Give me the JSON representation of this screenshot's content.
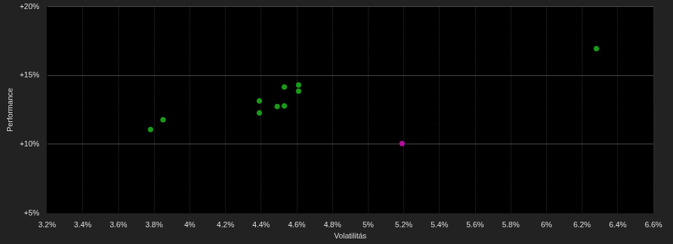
{
  "chart_data": {
    "type": "scatter",
    "x_label": "Volatilitás",
    "y_label": "Performance",
    "x": [
      3.78,
      3.85,
      4.39,
      4.39,
      4.49,
      4.53,
      4.53,
      4.61,
      4.61,
      6.28,
      5.19
    ],
    "values": [
      11.07,
      11.78,
      13.15,
      12.28,
      12.74,
      12.79,
      14.16,
      14.31,
      13.86,
      16.95,
      10.05
    ],
    "colors": [
      "#1a9a1a",
      "#1a9a1a",
      "#1a9a1a",
      "#1a9a1a",
      "#1a9a1a",
      "#1a9a1a",
      "#1a9a1a",
      "#1a9a1a",
      "#1a9a1a",
      "#1a9a1a",
      "#b0109c"
    ],
    "xlim": [
      3.2,
      6.6
    ],
    "xticks": [
      {
        "value": 3.2,
        "label": "3.2%"
      },
      {
        "value": 3.4,
        "label": "3.4%"
      },
      {
        "value": 3.6,
        "label": "3.6%"
      },
      {
        "value": 3.8,
        "label": "3.8%"
      },
      {
        "value": 4,
        "label": "4%"
      },
      {
        "value": 4.2,
        "label": "4.2%"
      },
      {
        "value": 4.4,
        "label": "4.4%"
      },
      {
        "value": 4.6,
        "label": "4.6%"
      },
      {
        "value": 4.8,
        "label": "4.8%"
      },
      {
        "value": 5,
        "label": "5%"
      },
      {
        "value": 5.2,
        "label": "5.2%"
      },
      {
        "value": 5.4,
        "label": "5.4%"
      },
      {
        "value": 5.6,
        "label": "5.6%"
      },
      {
        "value": 5.8,
        "label": "5.8%"
      },
      {
        "value": 6,
        "label": "6%"
      },
      {
        "value": 6.2,
        "label": "6.2%"
      },
      {
        "value": 6.4,
        "label": "6.4%"
      },
      {
        "value": 6.6,
        "label": "6.6%"
      }
    ],
    "ylim": [
      5,
      20
    ],
    "yticks": [
      {
        "value": 5,
        "label": "+5%"
      },
      {
        "value": 10,
        "label": "+10%"
      },
      {
        "value": 15,
        "label": "+15%"
      },
      {
        "value": 20,
        "label": "+20%"
      }
    ],
    "grid": true,
    "marker": "circle"
  }
}
